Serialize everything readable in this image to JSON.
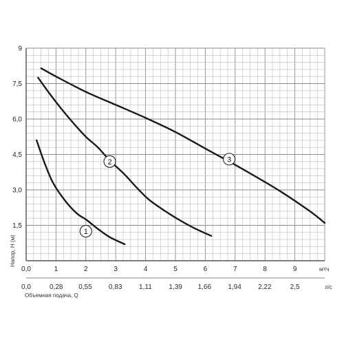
{
  "chart_data": {
    "type": "line",
    "ylabel": "Напор, H (м)",
    "xlabel": "Объемная подача, Q",
    "x_unit": "м³/ч",
    "x2_unit": "л/с",
    "xlim": [
      0,
      10
    ],
    "ylim": [
      0,
      9
    ],
    "grid": true,
    "y_ticks": [
      {
        "value": 0,
        "label": ""
      },
      {
        "value": 1.5,
        "label": "1,5"
      },
      {
        "value": 3,
        "label": "3,0"
      },
      {
        "value": 4.5,
        "label": "4,5"
      },
      {
        "value": 6,
        "label": "6,0"
      },
      {
        "value": 7.5,
        "label": "7,5"
      },
      {
        "value": 9,
        "label": "9"
      }
    ],
    "x_ticks": [
      {
        "value": 0,
        "label": "0,0"
      },
      {
        "value": 1,
        "label": "1"
      },
      {
        "value": 2,
        "label": "2"
      },
      {
        "value": 3,
        "label": "3"
      },
      {
        "value": 4,
        "label": "4"
      },
      {
        "value": 5,
        "label": "5"
      },
      {
        "value": 6,
        "label": "6"
      },
      {
        "value": 7,
        "label": "7"
      },
      {
        "value": 8,
        "label": "8"
      },
      {
        "value": 9,
        "label": "9"
      }
    ],
    "x2_ticks": [
      {
        "value": 0,
        "label": "0,0"
      },
      {
        "value": 0.28,
        "label": "0,28"
      },
      {
        "value": 0.55,
        "label": "0,55"
      },
      {
        "value": 0.83,
        "label": "0,83"
      },
      {
        "value": 1.11,
        "label": "1,11"
      },
      {
        "value": 1.39,
        "label": "1,39"
      },
      {
        "value": 1.66,
        "label": "1,66"
      },
      {
        "value": 1.94,
        "label": "1,94"
      },
      {
        "value": 2.22,
        "label": "2,22"
      },
      {
        "value": 2.5,
        "label": "2,5"
      }
    ],
    "x2_per_x": 0.2778,
    "series": [
      {
        "name": "1",
        "color": "#1a1a1a",
        "label_at": [
          2.0,
          1.25
        ],
        "points": [
          [
            0.35,
            5.1
          ],
          [
            0.6,
            4.2
          ],
          [
            0.9,
            3.3
          ],
          [
            1.3,
            2.55
          ],
          [
            1.7,
            2.0
          ],
          [
            2.0,
            1.75
          ],
          [
            2.4,
            1.35
          ],
          [
            2.8,
            1.0
          ],
          [
            3.3,
            0.7
          ]
        ]
      },
      {
        "name": "2",
        "color": "#1a1a1a",
        "label_at": [
          2.8,
          4.2
        ],
        "points": [
          [
            0.4,
            7.75
          ],
          [
            0.8,
            7.05
          ],
          [
            1.2,
            6.4
          ],
          [
            1.6,
            5.8
          ],
          [
            2.0,
            5.25
          ],
          [
            2.4,
            4.8
          ],
          [
            2.8,
            4.25
          ],
          [
            3.3,
            3.65
          ],
          [
            3.7,
            3.1
          ],
          [
            4.1,
            2.6
          ],
          [
            4.6,
            2.15
          ],
          [
            5.1,
            1.75
          ],
          [
            5.6,
            1.4
          ],
          [
            6.2,
            1.05
          ]
        ]
      },
      {
        "name": "3",
        "color": "#1a1a1a",
        "label_at": [
          6.8,
          4.3
        ],
        "points": [
          [
            0.5,
            8.15
          ],
          [
            1.0,
            7.8
          ],
          [
            2.0,
            7.15
          ],
          [
            3.0,
            6.6
          ],
          [
            4.0,
            6.05
          ],
          [
            5.0,
            5.45
          ],
          [
            6.0,
            4.75
          ],
          [
            6.8,
            4.2
          ],
          [
            7.5,
            3.7
          ],
          [
            8.5,
            2.95
          ],
          [
            9.5,
            2.1
          ],
          [
            10.0,
            1.6
          ]
        ]
      }
    ]
  }
}
